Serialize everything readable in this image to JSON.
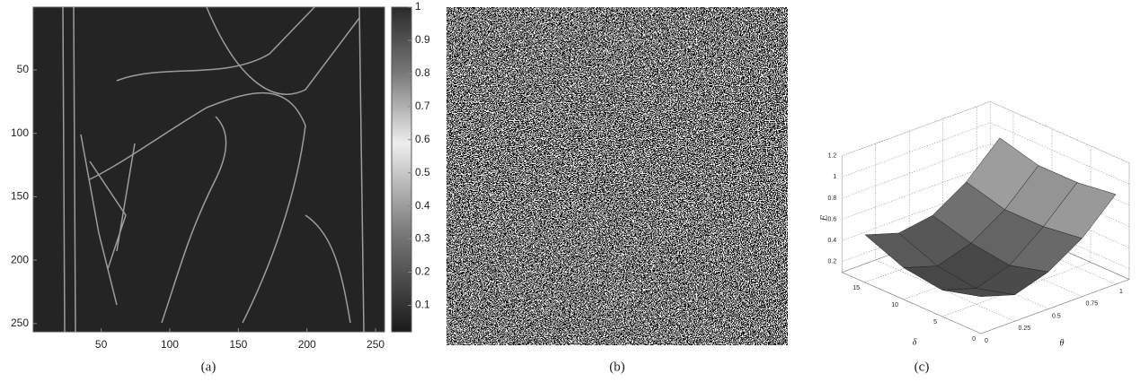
{
  "panels": [
    {
      "caption": "(a)",
      "xlim": [
        0.5,
        256.5
      ],
      "xticks": [
        50,
        100,
        150,
        200,
        250
      ],
      "ylim": [
        0.5,
        256.5
      ],
      "yticks": [
        50,
        100,
        150,
        200,
        250
      ],
      "colorbar": {
        "lim": [
          0.02,
          1
        ],
        "ticks": [
          0.1,
          0.2,
          0.3,
          0.4,
          0.5,
          0.6,
          0.7,
          0.8,
          0.9,
          1
        ]
      }
    },
    {
      "caption": "(b)"
    },
    {
      "caption": "(c)",
      "zlabel": "E",
      "ylabel": "δ",
      "xlabel": "θ",
      "xlim": [
        0,
        1.1
      ],
      "xticks": [
        0,
        0.25,
        0.5,
        0.75,
        1
      ],
      "ylim": [
        0,
        18
      ],
      "yticks": [
        0,
        5,
        10,
        15
      ],
      "zlim": [
        0.1,
        1.2
      ],
      "zticks": [
        0.2,
        0.4,
        0.6,
        0.8,
        1,
        1.2
      ],
      "surface": {
        "theta": [
          0,
          0.25,
          0.5,
          0.75,
          1
        ],
        "delta": [
          0,
          5,
          10,
          15
        ],
        "E": [
          [
            0.45,
            0.35,
            0.45,
            0.65,
            0.95
          ],
          [
            0.35,
            0.25,
            0.35,
            0.6,
            0.9
          ],
          [
            0.4,
            0.3,
            0.4,
            0.6,
            0.9
          ],
          [
            0.55,
            0.45,
            0.5,
            0.7,
            1.0
          ]
        ]
      }
    }
  ]
}
